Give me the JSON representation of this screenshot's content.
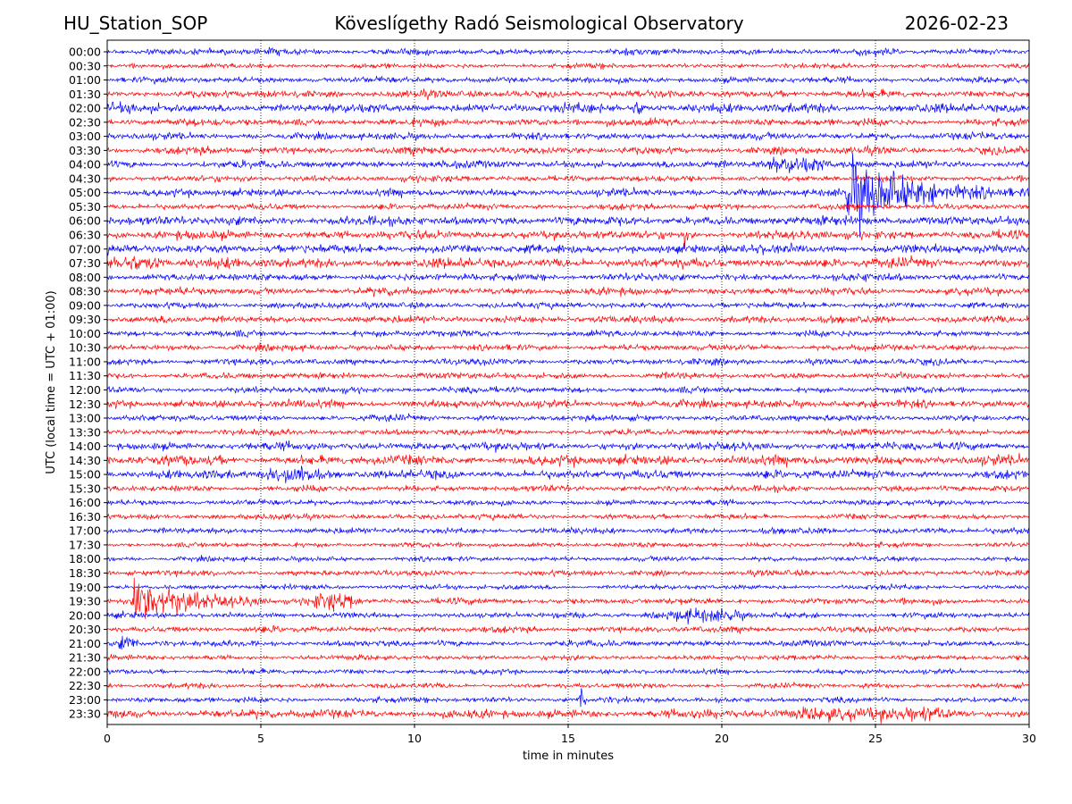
{
  "chart_data": {
    "type": "line",
    "title_left": "HU_Station_SOP",
    "title_center": "Köveslígethy Radó Seismological Observatory",
    "title_right": "2026-02-23",
    "xlabel": "time in minutes",
    "ylabel": "UTC (local time = UTC + 01:00)",
    "xlim": [
      0,
      30
    ],
    "xticks": [
      0,
      5,
      10,
      15,
      20,
      25,
      30
    ],
    "grid_x": true,
    "row_labels": [
      "00:00",
      "00:30",
      "01:00",
      "01:30",
      "02:00",
      "02:30",
      "03:00",
      "03:30",
      "04:00",
      "04:30",
      "05:00",
      "05:30",
      "06:00",
      "06:30",
      "07:00",
      "07:30",
      "08:00",
      "08:30",
      "09:00",
      "09:30",
      "10:00",
      "10:30",
      "11:00",
      "11:30",
      "12:00",
      "12:30",
      "13:00",
      "13:30",
      "14:00",
      "14:30",
      "15:00",
      "15:30",
      "16:00",
      "16:30",
      "17:00",
      "17:30",
      "18:00",
      "18:30",
      "19:00",
      "19:30",
      "20:00",
      "20:30",
      "21:00",
      "21:30",
      "22:00",
      "22:30",
      "23:00",
      "23:30"
    ],
    "trace_colors": [
      "#0000ff",
      "#ff0000"
    ],
    "base_amplitude": [
      1.0,
      0.8,
      1.0,
      1.2,
      1.5,
      1.2,
      1.1,
      1.2,
      1.2,
      1.0,
      1.2,
      1.0,
      1.5,
      1.4,
      1.5,
      1.6,
      1.2,
      1.2,
      1.0,
      1.2,
      1.0,
      1.0,
      1.0,
      1.0,
      1.0,
      1.3,
      1.0,
      1.0,
      1.3,
      1.6,
      1.4,
      1.0,
      0.9,
      0.9,
      1.0,
      0.8,
      0.8,
      0.9,
      0.8,
      1.0,
      0.9,
      1.0,
      1.0,
      0.8,
      0.8,
      0.8,
      0.9,
      1.4
    ],
    "events": [
      {
        "row": "04:00",
        "start_min": 21.0,
        "end_min": 23.5,
        "peak": 4,
        "kind": "burst"
      },
      {
        "row": "05:00",
        "start_min": 24.0,
        "end_min": 30.0,
        "peak": 20,
        "kind": "quake"
      },
      {
        "row": "19:30",
        "start_min": 0.8,
        "end_min": 5.0,
        "peak": 18,
        "kind": "quake"
      },
      {
        "row": "19:30",
        "start_min": 6.3,
        "end_min": 8.3,
        "peak": 4,
        "kind": "burst"
      },
      {
        "row": "15:00",
        "start_min": 5.0,
        "end_min": 7.0,
        "peak": 4,
        "kind": "burst"
      },
      {
        "row": "07:30",
        "start_min": 0.0,
        "end_min": 2.0,
        "peak": 3,
        "kind": "burst"
      },
      {
        "row": "23:00",
        "start_min": 15.3,
        "end_min": 15.6,
        "peak": 6,
        "kind": "spike"
      },
      {
        "row": "06:30",
        "start_min": 18.7,
        "end_min": 18.9,
        "peak": 5,
        "kind": "spike"
      },
      {
        "row": "20:00",
        "start_min": 17.5,
        "end_min": 21.0,
        "peak": 2.5,
        "kind": "burst"
      },
      {
        "row": "21:00",
        "start_min": 0.3,
        "end_min": 1.0,
        "peak": 3,
        "kind": "burst"
      },
      {
        "row": "23:30",
        "start_min": 21.0,
        "end_min": 28.0,
        "peak": 2,
        "kind": "burst"
      },
      {
        "row": "02:00",
        "start_min": 17.0,
        "end_min": 17.6,
        "peak": 3,
        "kind": "burst"
      }
    ]
  }
}
